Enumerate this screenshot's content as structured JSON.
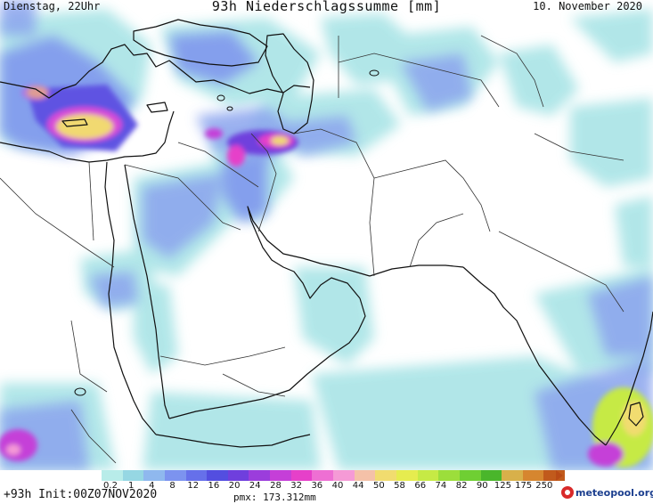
{
  "header": {
    "left": "Dienstag, 22Uhr",
    "title": "93h Niederschlagssumme [mm]",
    "right": "10. November 2020"
  },
  "legend": {
    "labels": [
      "0.2",
      "1",
      "4",
      "8",
      "12",
      "16",
      "20",
      "24",
      "28",
      "32",
      "36",
      "40",
      "44",
      "50",
      "58",
      "66",
      "74",
      "82",
      "90",
      "125",
      "175",
      "250"
    ],
    "colors": [
      "#b8ece9",
      "#96d7e3",
      "#8fb8ee",
      "#7c93ef",
      "#6670ea",
      "#534ee0",
      "#6f3fdd",
      "#9b3ddc",
      "#c53fd8",
      "#e640c9",
      "#ee6fd3",
      "#f59ad6",
      "#f4c1a8",
      "#f1dc6f",
      "#e6ec4f",
      "#c6ea45",
      "#9cde3b",
      "#6fcf33",
      "#4ab62b",
      "#d8b04a",
      "#d6862f",
      "#c15a1c"
    ]
  },
  "footer": {
    "init": "+93h Init:00Z07NOV2020",
    "pmax": "pmx: 173.312mm",
    "brand": "meteopool.org"
  },
  "map_colors": {
    "land": "#ffffff",
    "coast": "#111111",
    "border": "#333333"
  }
}
